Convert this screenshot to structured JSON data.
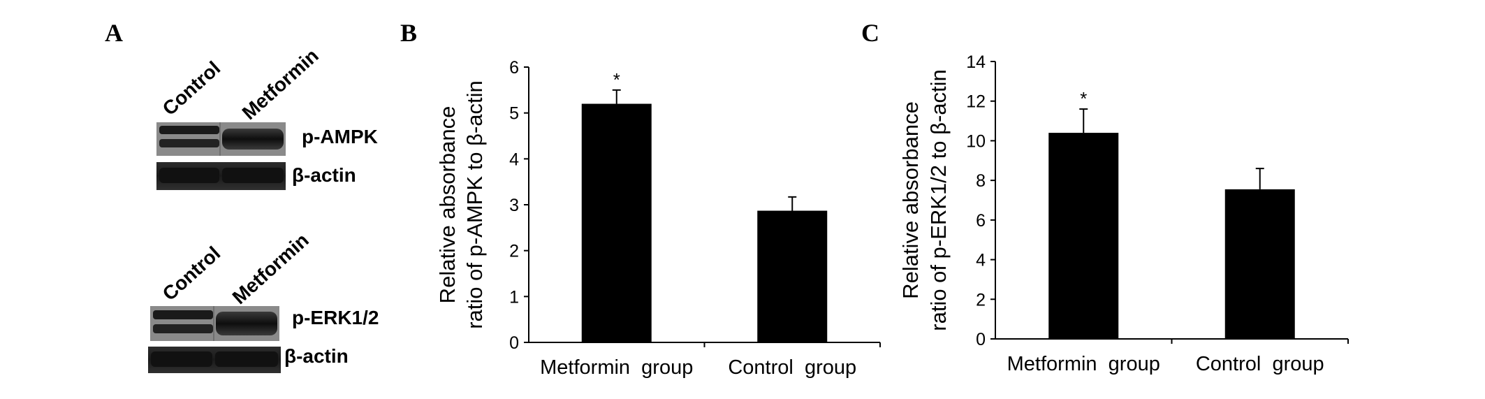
{
  "panels": {
    "a": "A",
    "b": "B",
    "c": "C"
  },
  "blots": {
    "top": {
      "lanes": [
        "Control",
        "Metformin"
      ],
      "band1": "p-AMPK",
      "band2": "β-actin"
    },
    "bottom": {
      "lanes": [
        "Control",
        "Metformin"
      ],
      "band1": "p-ERK1/2",
      "band2": "β-actin"
    }
  },
  "chart_data": [
    {
      "type": "bar",
      "categories": [
        "Metformin  group",
        "Control  group"
      ],
      "values": [
        5.2,
        2.87
      ],
      "errors": [
        0.3,
        0.3
      ],
      "annotations": [
        "*",
        ""
      ],
      "ylabel_line1": "Relative absorbance",
      "ylabel_line2": "ratio of p-AMPK  to β-actin",
      "ylim": [
        0,
        6
      ],
      "yticks": [
        0,
        1,
        2,
        3,
        4,
        5,
        6
      ],
      "grid": false,
      "bar_color": "#000000"
    },
    {
      "type": "bar",
      "categories": [
        "Metformin  group",
        "Control  group"
      ],
      "values": [
        10.4,
        7.55
      ],
      "errors": [
        1.2,
        1.05
      ],
      "annotations": [
        "*",
        ""
      ],
      "ylabel_line1": "Relative absorbance",
      "ylabel_line2": "ratio of p-ERK1/2 to β-actin",
      "ylim": [
        0,
        14
      ],
      "yticks": [
        0,
        2,
        4,
        6,
        8,
        10,
        12,
        14
      ],
      "grid": false,
      "bar_color": "#000000"
    }
  ]
}
